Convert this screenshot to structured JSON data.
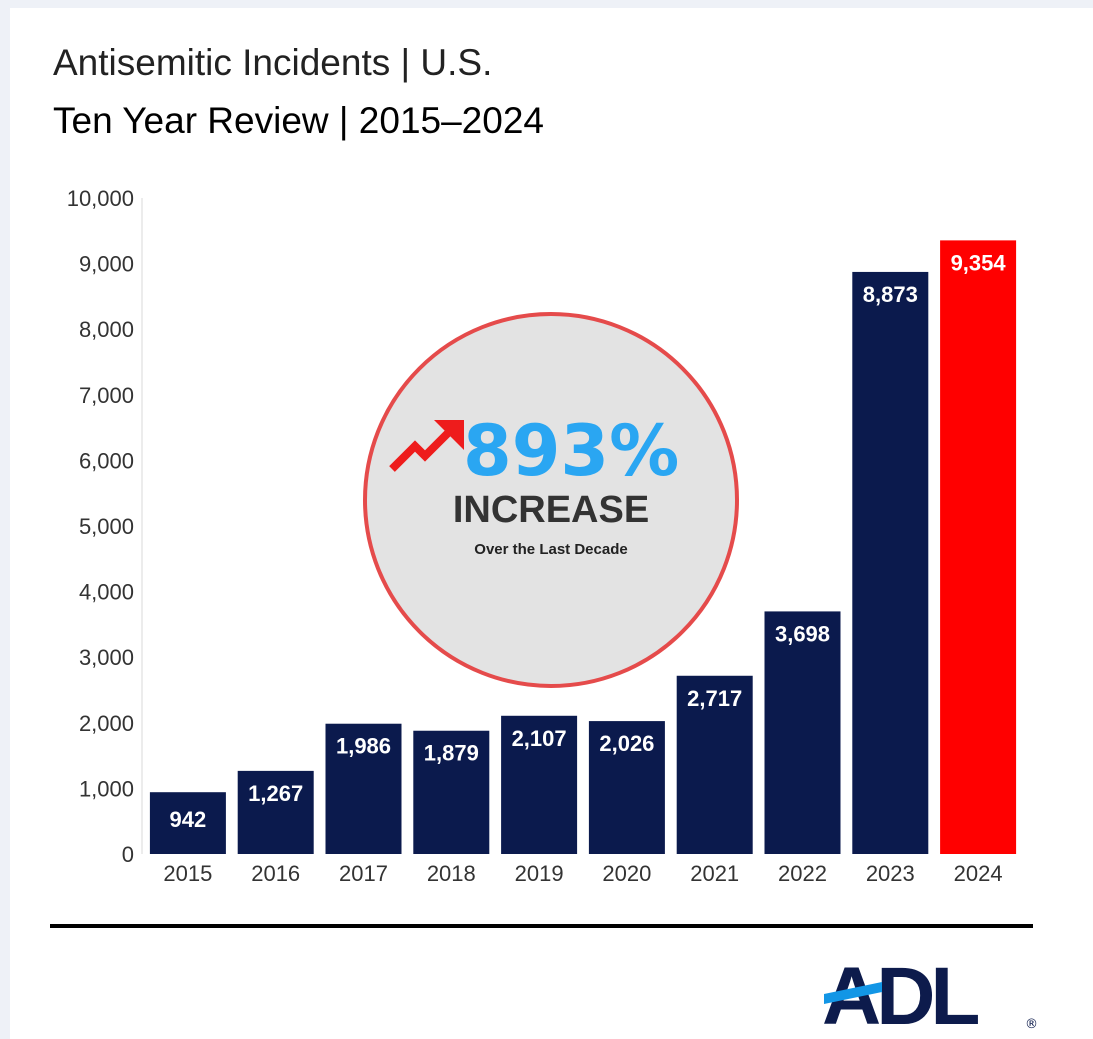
{
  "colors": {
    "bar": "#0b1a4d",
    "highlight_bar": "#ff0000",
    "callout_fill": "#e3e3e3",
    "callout_stroke": "#e54b4b",
    "callout_value": "#2aa6f2",
    "arrow": "#ee1c1c",
    "logo_accent": "#1296e6",
    "logo_text": "#0d1b4c"
  },
  "callout": {
    "value": "893%",
    "label": "INCREASE",
    "sublabel": "Over the Last Decade",
    "icon": "trend-up-arrow-icon"
  },
  "logo": {
    "text": "ADL",
    "mark": "®"
  },
  "chart_data": {
    "type": "bar",
    "title": "Antisemitic Incidents | U.S.",
    "subtitle": "Ten Year Review | 2015–2024",
    "categories": [
      "2015",
      "2016",
      "2017",
      "2018",
      "2019",
      "2020",
      "2021",
      "2022",
      "2023",
      "2024"
    ],
    "values": [
      942,
      1267,
      1986,
      1879,
      2107,
      2026,
      2717,
      3698,
      8873,
      9354
    ],
    "value_labels": [
      "942",
      "1,267",
      "1,986",
      "1,879",
      "2,107",
      "2,026",
      "2,717",
      "3,698",
      "8,873",
      "9,354"
    ],
    "highlight_category": "2024",
    "ylim": [
      0,
      10000
    ],
    "yticks": [
      0,
      1000,
      2000,
      3000,
      4000,
      5000,
      6000,
      7000,
      8000,
      9000,
      10000
    ],
    "ytick_labels": [
      "0",
      "1,000",
      "2,000",
      "3,000",
      "4,000",
      "5,000",
      "6,000",
      "7,000",
      "8,000",
      "9,000",
      "10,000"
    ],
    "grid": false,
    "legend": "none",
    "xlabel": "",
    "ylabel": ""
  }
}
